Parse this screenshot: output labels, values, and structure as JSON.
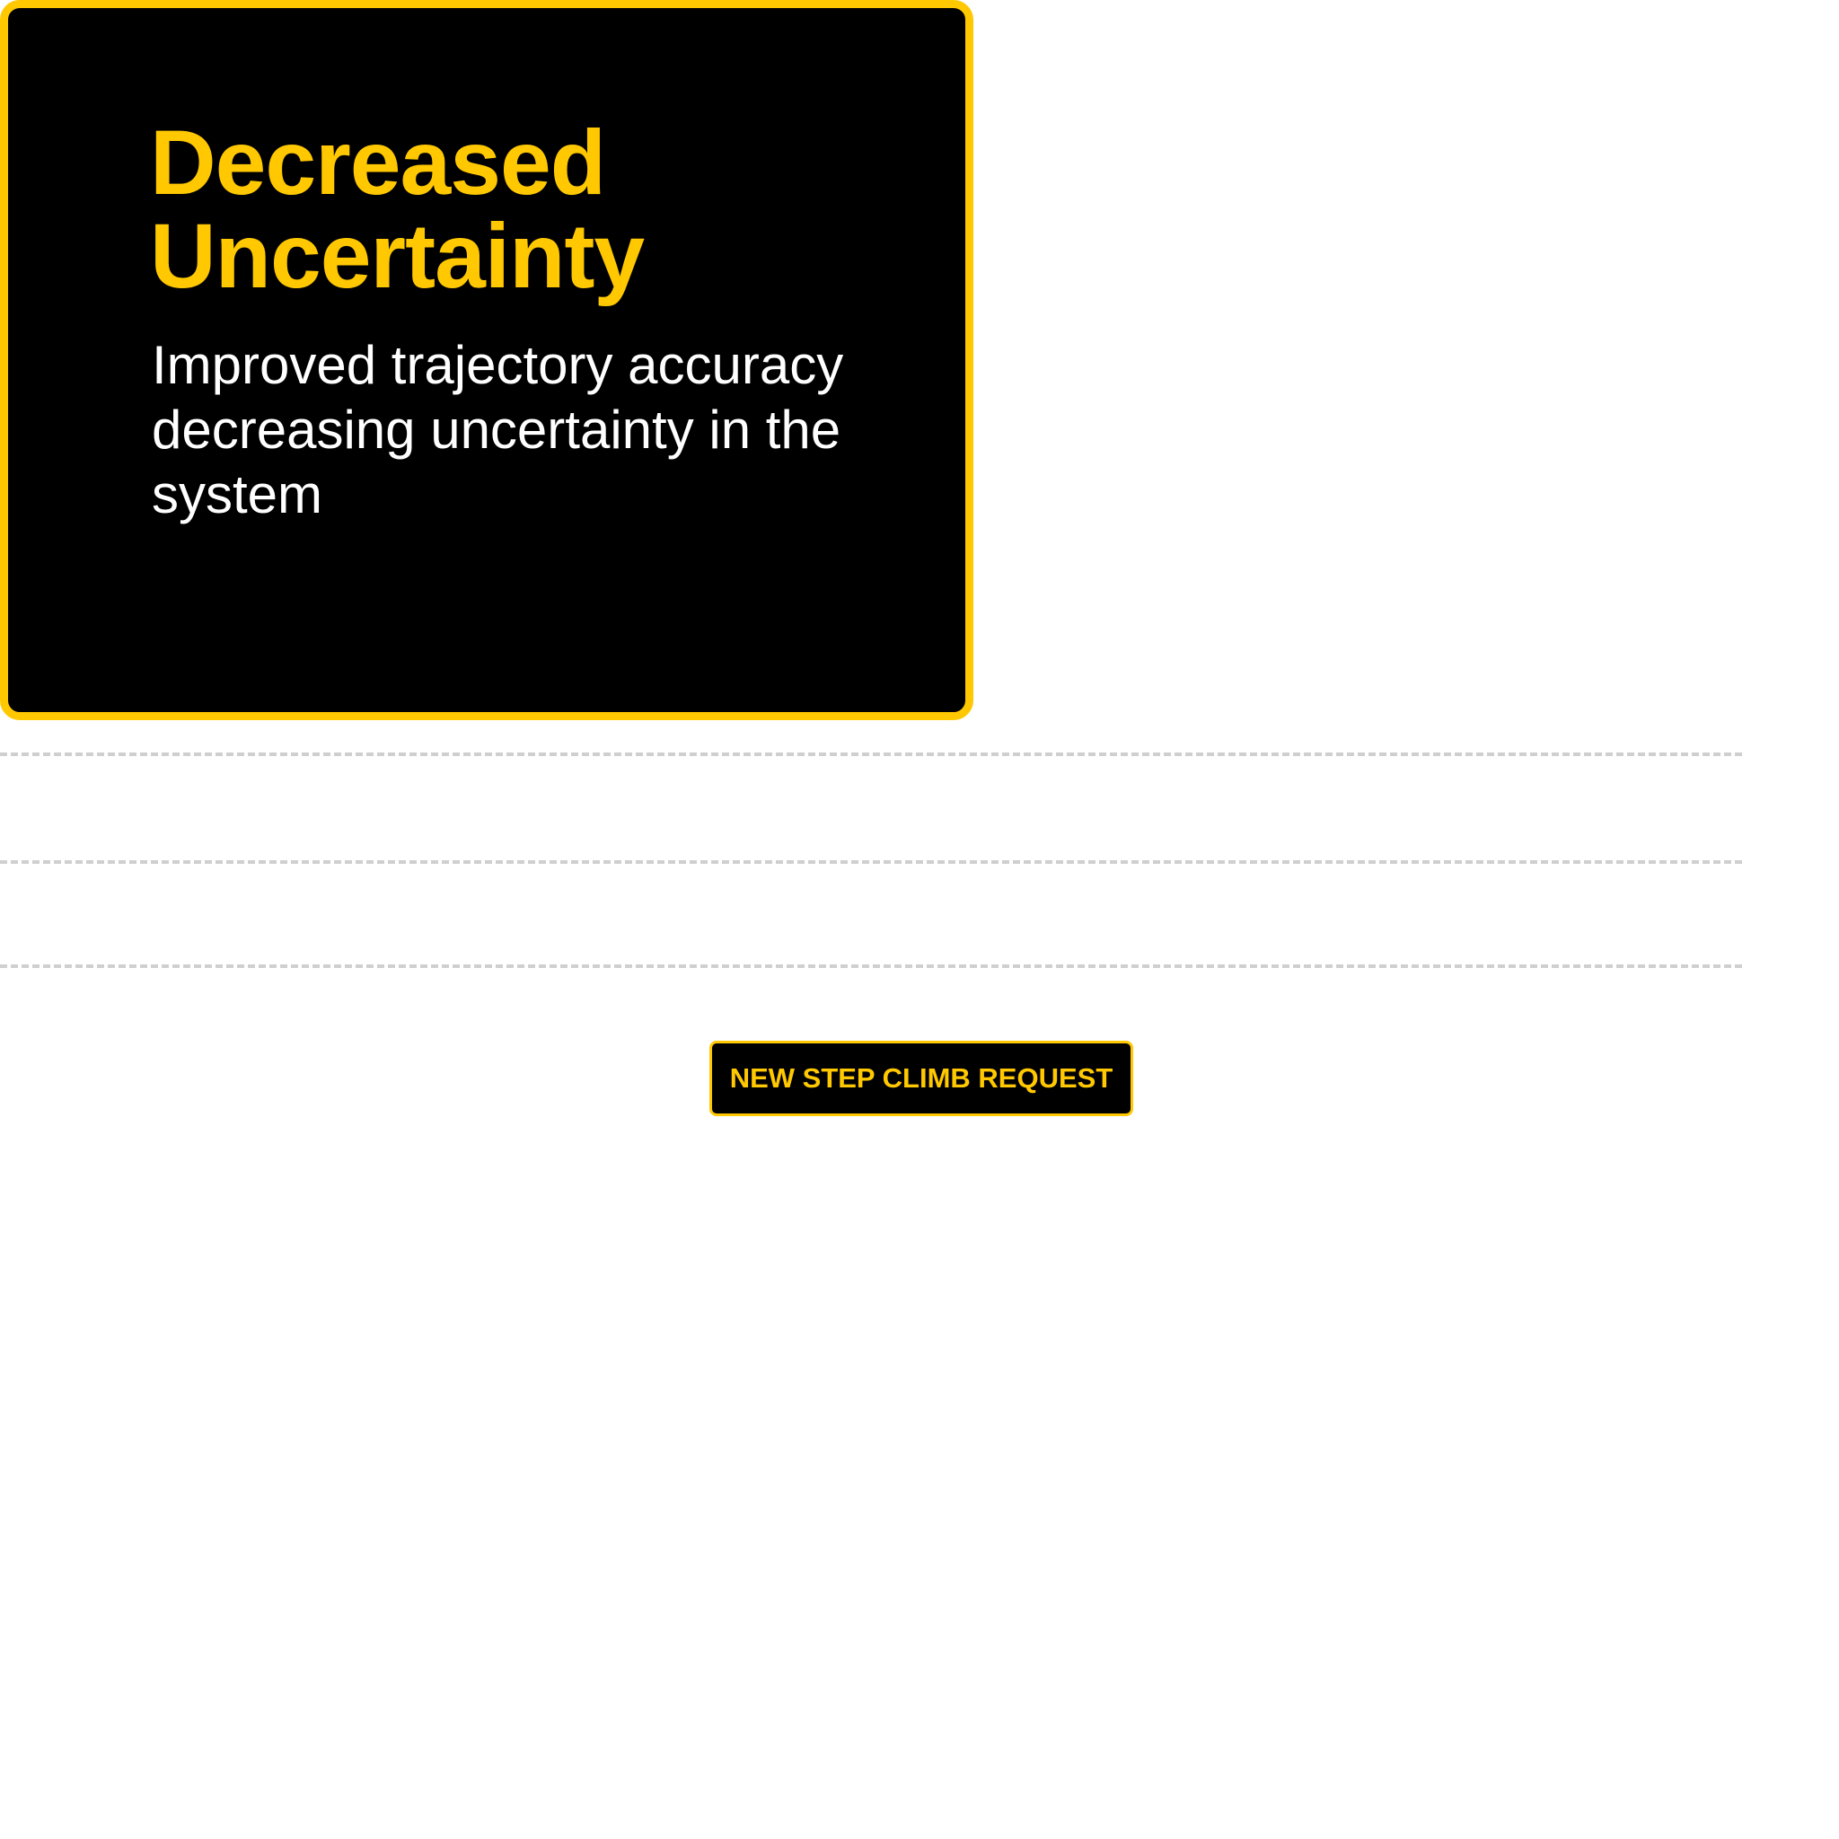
{
  "card": {
    "title_line1": "Decreased",
    "title_line2": "Uncertainty",
    "body": "Improved trajectory accuracy decreasing uncertainty in the system"
  },
  "action": {
    "button_label": "NEW STEP CLIMB REQUEST"
  },
  "colors": {
    "accent": "#FFC800",
    "card_background": "#000000",
    "body_text": "#FFFFFF",
    "divider": "#CFCFCF"
  }
}
